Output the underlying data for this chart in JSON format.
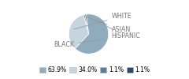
{
  "labels": [
    "BLACK",
    "WHITE",
    "ASIAN",
    "HISPANIC"
  ],
  "values": [
    63.9,
    34.0,
    1.1,
    1.1
  ],
  "colors": [
    "#8fabbe",
    "#c5d5e0",
    "#5c7d96",
    "#2b4a66"
  ],
  "legend_labels": [
    "63.9%",
    "34.0%",
    "1.1%",
    "1.1%"
  ],
  "startangle": 97,
  "background_color": "#ffffff",
  "label_fontsize": 5.8,
  "legend_fontsize": 5.5,
  "label_color": "#777777",
  "line_color": "#999999"
}
